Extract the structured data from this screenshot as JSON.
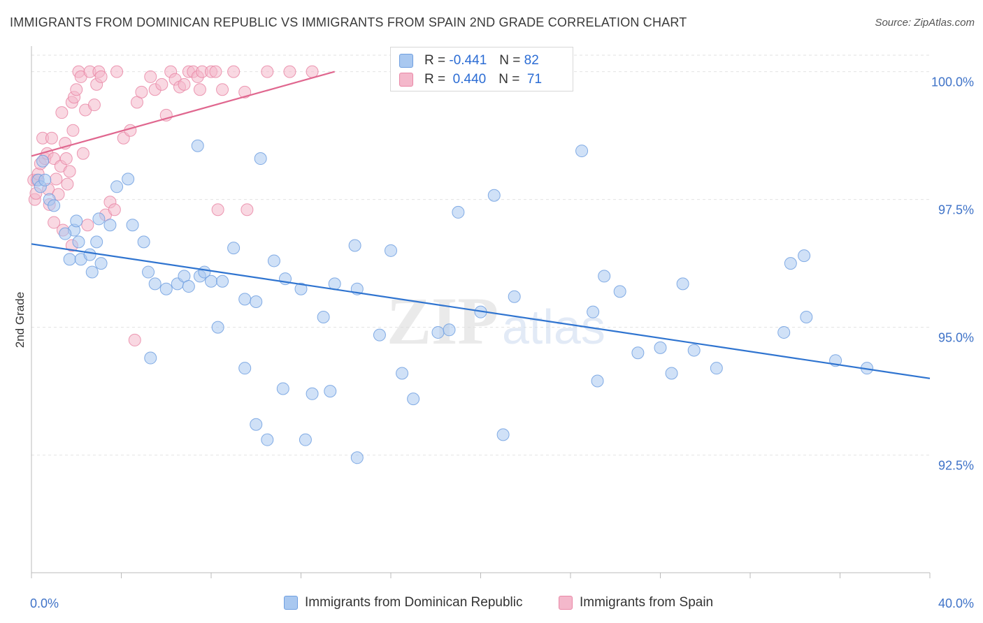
{
  "title": "IMMIGRANTS FROM DOMINICAN REPUBLIC VS IMMIGRANTS FROM SPAIN 2ND GRADE CORRELATION CHART",
  "source": "Source: ZipAtlas.com",
  "watermark": {
    "zip": "ZIP",
    "atlas": "atlas"
  },
  "colors": {
    "blue_fill": "#a9c8f0",
    "blue_stroke": "#6f9fe0",
    "blue_line": "#2f74d0",
    "pink_fill": "#f4b8cb",
    "pink_stroke": "#e987a6",
    "pink_line": "#e0678f",
    "tick_label": "#3f73c8",
    "grid": "#e2e2e2"
  },
  "stats": {
    "blue": {
      "r_label": "R =",
      "r_value": "-0.441",
      "n_label": "N =",
      "n_value": "82"
    },
    "pink": {
      "r_label": "R =",
      "r_value": "0.440",
      "n_label": "N =",
      "n_value": "71"
    }
  },
  "legend": {
    "blue": "Immigrants from Dominican Republic",
    "pink": "Immigrants from Spain"
  },
  "chart_data": {
    "type": "scatter",
    "title": "IMMIGRANTS FROM DOMINICAN REPUBLIC VS IMMIGRANTS FROM SPAIN 2ND GRADE CORRELATION CHART",
    "xlabel": "",
    "ylabel": "2nd Grade",
    "x_tick_labels": [
      "0.0%",
      "40.0%"
    ],
    "y_tick_labels": [
      "92.5%",
      "95.0%",
      "97.5%",
      "100.0%"
    ],
    "xlim": [
      0,
      40
    ],
    "ylim": [
      90.2,
      100.5
    ],
    "y_ticks": [
      92.5,
      95.0,
      97.5,
      100.0
    ],
    "grid": true,
    "legend_position": "bottom",
    "series": [
      {
        "name": "Immigrants from Dominican Republic",
        "color": "#a9c8f0",
        "trend": {
          "x": [
            0,
            40
          ],
          "y": [
            96.63,
            94.0
          ]
        },
        "points": [
          [
            0.3,
            97.88
          ],
          [
            0.4,
            97.75
          ],
          [
            0.6,
            97.88
          ],
          [
            0.8,
            97.5
          ],
          [
            1.0,
            97.38
          ],
          [
            0.5,
            98.25
          ],
          [
            1.9,
            96.9
          ],
          [
            1.5,
            96.83
          ],
          [
            1.7,
            96.33
          ],
          [
            2.0,
            97.08
          ],
          [
            2.1,
            96.67
          ],
          [
            2.2,
            96.33
          ],
          [
            2.6,
            96.42
          ],
          [
            2.9,
            96.67
          ],
          [
            2.7,
            96.08
          ],
          [
            3.1,
            96.25
          ],
          [
            3.0,
            97.12
          ],
          [
            3.5,
            97.0
          ],
          [
            5.0,
            96.67
          ],
          [
            5.2,
            96.08
          ],
          [
            3.8,
            97.75
          ],
          [
            4.5,
            97.0
          ],
          [
            4.3,
            97.9
          ],
          [
            7.4,
            98.55
          ],
          [
            5.5,
            95.85
          ],
          [
            6.0,
            95.75
          ],
          [
            6.5,
            95.85
          ],
          [
            6.8,
            96.0
          ],
          [
            7.0,
            95.8
          ],
          [
            7.5,
            96.0
          ],
          [
            7.7,
            96.08
          ],
          [
            8.0,
            95.9
          ],
          [
            8.5,
            95.9
          ],
          [
            9.0,
            96.55
          ],
          [
            9.5,
            95.55
          ],
          [
            10.0,
            95.5
          ],
          [
            8.3,
            95.0
          ],
          [
            10.2,
            98.3
          ],
          [
            10.8,
            96.3
          ],
          [
            11.3,
            95.95
          ],
          [
            12.0,
            95.75
          ],
          [
            13.0,
            95.2
          ],
          [
            13.5,
            95.85
          ],
          [
            14.4,
            96.6
          ],
          [
            14.5,
            95.75
          ],
          [
            15.5,
            94.85
          ],
          [
            16.0,
            96.5
          ],
          [
            16.5,
            94.1
          ],
          [
            17.0,
            93.6
          ],
          [
            18.1,
            94.9
          ],
          [
            18.6,
            94.95
          ],
          [
            19.0,
            97.25
          ],
          [
            20.0,
            95.3
          ],
          [
            20.6,
            97.58
          ],
          [
            21.0,
            92.9
          ],
          [
            21.5,
            95.6
          ],
          [
            24.5,
            98.45
          ],
          [
            25.0,
            95.3
          ],
          [
            25.2,
            93.95
          ],
          [
            25.5,
            96.0
          ],
          [
            26.2,
            95.7
          ],
          [
            27.0,
            94.5
          ],
          [
            28.0,
            94.6
          ],
          [
            28.5,
            94.1
          ],
          [
            29.0,
            95.85
          ],
          [
            29.5,
            94.55
          ],
          [
            30.5,
            94.2
          ],
          [
            33.5,
            94.9
          ],
          [
            33.8,
            96.25
          ],
          [
            34.4,
            96.4
          ],
          [
            34.5,
            95.2
          ],
          [
            35.8,
            94.35
          ],
          [
            37.2,
            94.2
          ],
          [
            13.3,
            93.75
          ],
          [
            12.2,
            92.8
          ],
          [
            14.5,
            92.45
          ],
          [
            10.5,
            92.8
          ],
          [
            12.5,
            93.7
          ],
          [
            11.2,
            93.8
          ],
          [
            10.0,
            93.1
          ],
          [
            9.5,
            94.2
          ],
          [
            5.3,
            94.4
          ]
        ]
      },
      {
        "name": "Immigrants from Spain",
        "color": "#f4b8cb",
        "trend": {
          "x": [
            0,
            13.5
          ],
          "y": [
            98.35,
            100.0
          ]
        },
        "points": [
          [
            0.1,
            97.88
          ],
          [
            0.15,
            97.5
          ],
          [
            0.2,
            97.62
          ],
          [
            0.25,
            97.88
          ],
          [
            0.3,
            98.0
          ],
          [
            0.4,
            98.2
          ],
          [
            0.5,
            98.7
          ],
          [
            0.6,
            98.3
          ],
          [
            0.7,
            98.4
          ],
          [
            0.75,
            97.7
          ],
          [
            0.9,
            98.7
          ],
          [
            1.0,
            98.3
          ],
          [
            1.1,
            97.9
          ],
          [
            1.2,
            97.6
          ],
          [
            1.3,
            98.15
          ],
          [
            1.35,
            99.2
          ],
          [
            1.5,
            98.6
          ],
          [
            1.55,
            98.3
          ],
          [
            1.6,
            97.8
          ],
          [
            1.7,
            98.05
          ],
          [
            1.8,
            99.4
          ],
          [
            1.85,
            98.85
          ],
          [
            1.9,
            99.5
          ],
          [
            2.0,
            99.65
          ],
          [
            2.1,
            100.0
          ],
          [
            2.2,
            99.9
          ],
          [
            2.3,
            98.4
          ],
          [
            2.4,
            99.25
          ],
          [
            2.5,
            97.0
          ],
          [
            2.6,
            100.0
          ],
          [
            2.8,
            99.35
          ],
          [
            2.9,
            99.75
          ],
          [
            3.0,
            100.0
          ],
          [
            3.1,
            99.9
          ],
          [
            3.3,
            97.2
          ],
          [
            3.5,
            97.45
          ],
          [
            3.7,
            97.3
          ],
          [
            3.8,
            100.0
          ],
          [
            4.1,
            98.7
          ],
          [
            4.4,
            98.85
          ],
          [
            4.7,
            99.4
          ],
          [
            4.9,
            99.6
          ],
          [
            5.3,
            99.9
          ],
          [
            5.5,
            99.65
          ],
          [
            5.8,
            99.75
          ],
          [
            6.0,
            99.15
          ],
          [
            6.2,
            100.0
          ],
          [
            6.4,
            99.85
          ],
          [
            6.6,
            99.7
          ],
          [
            6.8,
            99.75
          ],
          [
            7.0,
            100.0
          ],
          [
            7.2,
            100.0
          ],
          [
            7.4,
            99.9
          ],
          [
            7.6,
            100.0
          ],
          [
            8.0,
            100.0
          ],
          [
            8.5,
            99.65
          ],
          [
            9.0,
            100.0
          ],
          [
            9.5,
            99.6
          ],
          [
            10.5,
            100.0
          ],
          [
            11.5,
            100.0
          ],
          [
            12.5,
            100.0
          ],
          [
            8.2,
            100.0
          ],
          [
            9.6,
            97.3
          ],
          [
            8.3,
            97.3
          ],
          [
            7.5,
            99.65
          ],
          [
            1.8,
            96.6
          ],
          [
            1.0,
            97.05
          ],
          [
            0.8,
            97.4
          ],
          [
            4.6,
            94.75
          ],
          [
            1.4,
            96.9
          ],
          [
            16.5,
            100.0
          ]
        ]
      }
    ]
  }
}
